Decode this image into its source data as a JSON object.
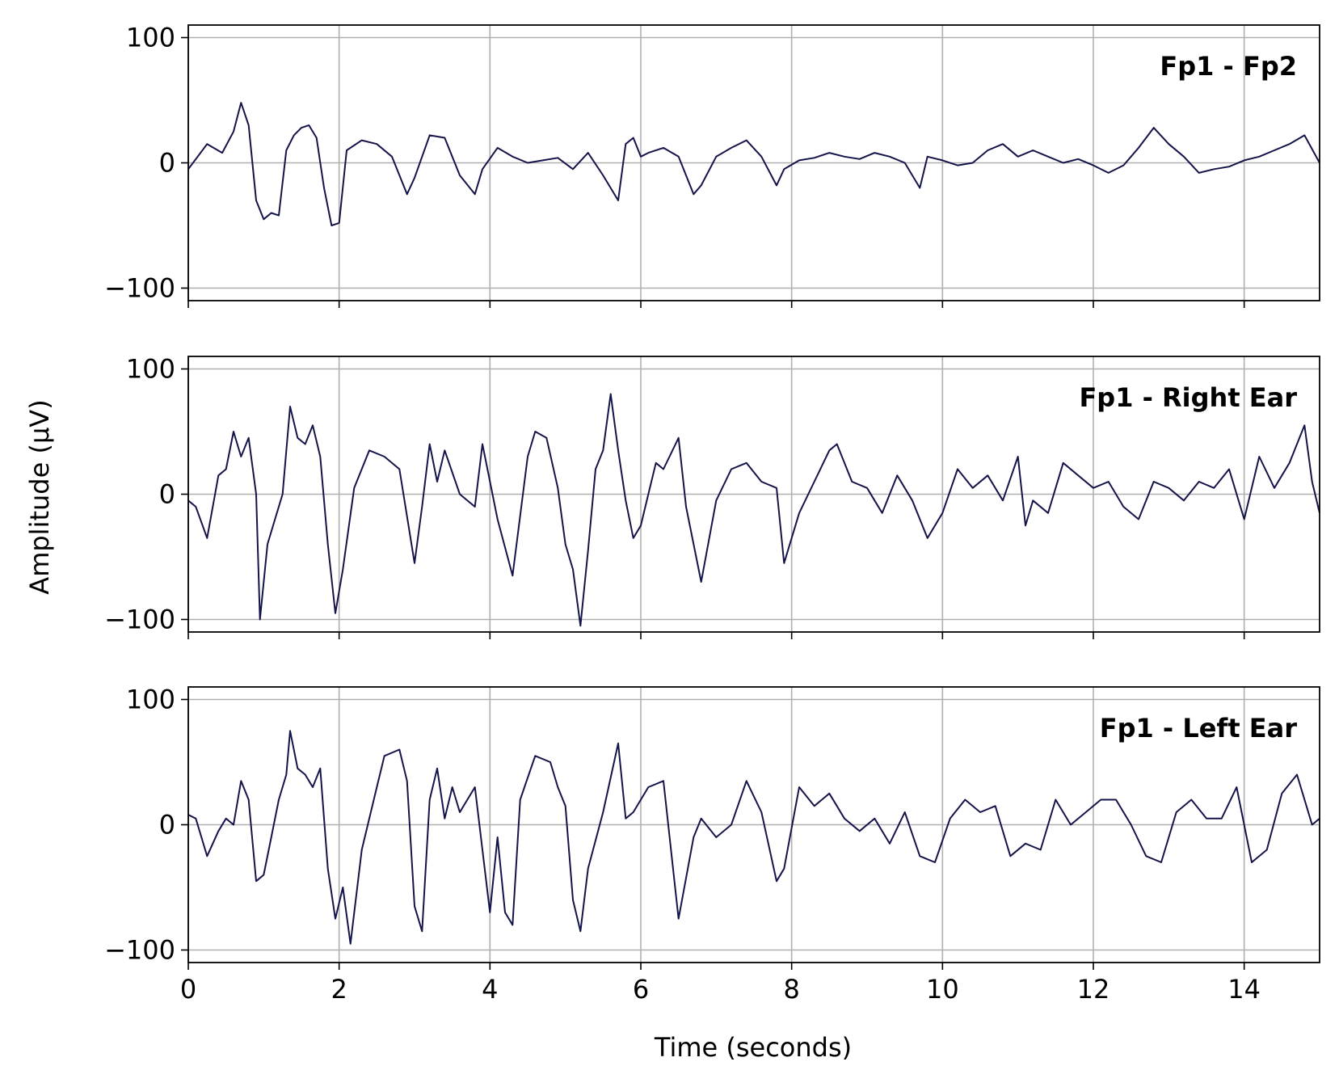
{
  "chart_data": {
    "type": "line",
    "xlabel": "Time (seconds)",
    "ylabel": "Amplitude (µV)",
    "xlim": [
      0,
      15
    ],
    "ylim": [
      -110,
      110
    ],
    "xticks": [
      0,
      2,
      4,
      6,
      8,
      10,
      12,
      14
    ],
    "yticks": [
      -100,
      0,
      100
    ],
    "ytick_labels": [
      "−100",
      "0",
      "100"
    ],
    "grid": true,
    "shared_x": true,
    "line_color": "#14144a",
    "panels": [
      {
        "title": "Fp1 - Fp2",
        "x": [
          0,
          0.25,
          0.45,
          0.6,
          0.7,
          0.8,
          0.9,
          1.0,
          1.1,
          1.2,
          1.3,
          1.4,
          1.5,
          1.6,
          1.7,
          1.8,
          1.9,
          2.0,
          2.1,
          2.3,
          2.5,
          2.7,
          2.9,
          3.0,
          3.2,
          3.4,
          3.6,
          3.8,
          3.9,
          4.1,
          4.3,
          4.5,
          4.7,
          4.9,
          5.1,
          5.3,
          5.5,
          5.7,
          5.8,
          5.9,
          6.0,
          6.1,
          6.3,
          6.5,
          6.7,
          6.8,
          7.0,
          7.2,
          7.4,
          7.6,
          7.8,
          7.9,
          8.1,
          8.3,
          8.5,
          8.7,
          8.9,
          9.1,
          9.3,
          9.5,
          9.7,
          9.8,
          10.0,
          10.2,
          10.4,
          10.6,
          10.8,
          11.0,
          11.2,
          11.4,
          11.6,
          11.8,
          12.0,
          12.2,
          12.4,
          12.6,
          12.8,
          13.0,
          13.2,
          13.4,
          13.6,
          13.8,
          14.0,
          14.2,
          14.4,
          14.6,
          14.8,
          15.0
        ],
        "y": [
          -5,
          15,
          8,
          25,
          48,
          30,
          -30,
          -45,
          -40,
          -42,
          10,
          22,
          28,
          30,
          20,
          -20,
          -50,
          -48,
          10,
          18,
          15,
          5,
          -25,
          -12,
          22,
          20,
          -10,
          -25,
          -5,
          12,
          5,
          0,
          2,
          4,
          -5,
          8,
          -10,
          -30,
          15,
          20,
          5,
          8,
          12,
          5,
          -25,
          -18,
          5,
          12,
          18,
          5,
          -18,
          -5,
          2,
          4,
          8,
          5,
          3,
          8,
          5,
          0,
          -20,
          5,
          2,
          -2,
          0,
          10,
          15,
          5,
          10,
          5,
          0,
          3,
          -2,
          -8,
          -2,
          12,
          28,
          15,
          5,
          -8,
          -5,
          -3,
          2,
          5,
          10,
          15,
          22,
          0
        ]
      },
      {
        "title": "Fp1 - Right Ear",
        "x": [
          0,
          0.1,
          0.25,
          0.4,
          0.5,
          0.6,
          0.7,
          0.8,
          0.9,
          0.95,
          1.05,
          1.15,
          1.25,
          1.35,
          1.45,
          1.55,
          1.65,
          1.75,
          1.85,
          1.95,
          2.05,
          2.2,
          2.4,
          2.6,
          2.8,
          3.0,
          3.1,
          3.2,
          3.3,
          3.4,
          3.6,
          3.8,
          3.9,
          4.1,
          4.3,
          4.5,
          4.6,
          4.75,
          4.9,
          5.0,
          5.1,
          5.2,
          5.3,
          5.4,
          5.5,
          5.6,
          5.7,
          5.8,
          5.9,
          6.0,
          6.1,
          6.2,
          6.3,
          6.5,
          6.6,
          6.8,
          7.0,
          7.2,
          7.4,
          7.6,
          7.8,
          7.9,
          8.1,
          8.3,
          8.5,
          8.6,
          8.8,
          9.0,
          9.2,
          9.4,
          9.6,
          9.8,
          10.0,
          10.2,
          10.4,
          10.6,
          10.8,
          11.0,
          11.1,
          11.2,
          11.4,
          11.6,
          11.8,
          12.0,
          12.2,
          12.4,
          12.6,
          12.8,
          13.0,
          13.2,
          13.4,
          13.6,
          13.8,
          14.0,
          14.2,
          14.4,
          14.6,
          14.8,
          14.9,
          15.0
        ],
        "y": [
          -5,
          -10,
          -35,
          15,
          20,
          50,
          30,
          45,
          0,
          -100,
          -40,
          -20,
          0,
          70,
          45,
          40,
          55,
          30,
          -40,
          -95,
          -60,
          5,
          35,
          30,
          20,
          -55,
          -10,
          40,
          10,
          35,
          0,
          -10,
          40,
          -20,
          -65,
          30,
          50,
          45,
          5,
          -40,
          -60,
          -105,
          -45,
          20,
          35,
          80,
          35,
          -5,
          -35,
          -25,
          0,
          25,
          20,
          45,
          -10,
          -70,
          -5,
          20,
          25,
          10,
          5,
          -55,
          -15,
          10,
          35,
          40,
          10,
          5,
          -15,
          15,
          -5,
          -35,
          -15,
          20,
          5,
          15,
          -5,
          30,
          -25,
          -5,
          -15,
          25,
          15,
          5,
          10,
          -10,
          -20,
          10,
          5,
          -5,
          10,
          5,
          20,
          -20,
          30,
          5,
          25,
          55,
          10,
          -15
        ]
      },
      {
        "title": "Fp1 - Left Ear",
        "x": [
          0,
          0.1,
          0.25,
          0.4,
          0.5,
          0.6,
          0.7,
          0.8,
          0.9,
          1.0,
          1.1,
          1.2,
          1.3,
          1.35,
          1.45,
          1.55,
          1.65,
          1.75,
          1.85,
          1.95,
          2.05,
          2.15,
          2.3,
          2.5,
          2.6,
          2.8,
          2.9,
          3.0,
          3.1,
          3.2,
          3.3,
          3.4,
          3.5,
          3.6,
          3.8,
          4.0,
          4.1,
          4.2,
          4.3,
          4.4,
          4.6,
          4.8,
          4.9,
          5.0,
          5.1,
          5.2,
          5.3,
          5.5,
          5.7,
          5.8,
          5.9,
          6.1,
          6.3,
          6.5,
          6.7,
          6.8,
          7.0,
          7.2,
          7.4,
          7.6,
          7.8,
          7.9,
          8.1,
          8.3,
          8.5,
          8.7,
          8.9,
          9.1,
          9.3,
          9.5,
          9.7,
          9.9,
          10.1,
          10.3,
          10.5,
          10.7,
          10.9,
          11.1,
          11.3,
          11.5,
          11.7,
          11.9,
          12.1,
          12.3,
          12.5,
          12.7,
          12.9,
          13.1,
          13.3,
          13.5,
          13.7,
          13.9,
          14.1,
          14.3,
          14.5,
          14.7,
          14.9,
          15.0
        ],
        "y": [
          8,
          5,
          -25,
          -5,
          5,
          0,
          35,
          20,
          -45,
          -40,
          -10,
          20,
          40,
          75,
          45,
          40,
          30,
          45,
          -35,
          -75,
          -50,
          -95,
          -20,
          30,
          55,
          60,
          35,
          -65,
          -85,
          20,
          45,
          5,
          30,
          10,
          30,
          -70,
          -10,
          -70,
          -80,
          20,
          55,
          50,
          30,
          15,
          -60,
          -85,
          -35,
          10,
          65,
          5,
          10,
          30,
          35,
          -75,
          -10,
          5,
          -10,
          0,
          35,
          10,
          -45,
          -35,
          30,
          15,
          25,
          5,
          -5,
          5,
          -15,
          10,
          -25,
          -30,
          5,
          20,
          10,
          15,
          -25,
          -15,
          -20,
          20,
          0,
          10,
          20,
          20,
          0,
          -25,
          -30,
          10,
          20,
          5,
          5,
          30,
          -30,
          -20,
          25,
          40,
          0,
          5
        ]
      }
    ]
  }
}
